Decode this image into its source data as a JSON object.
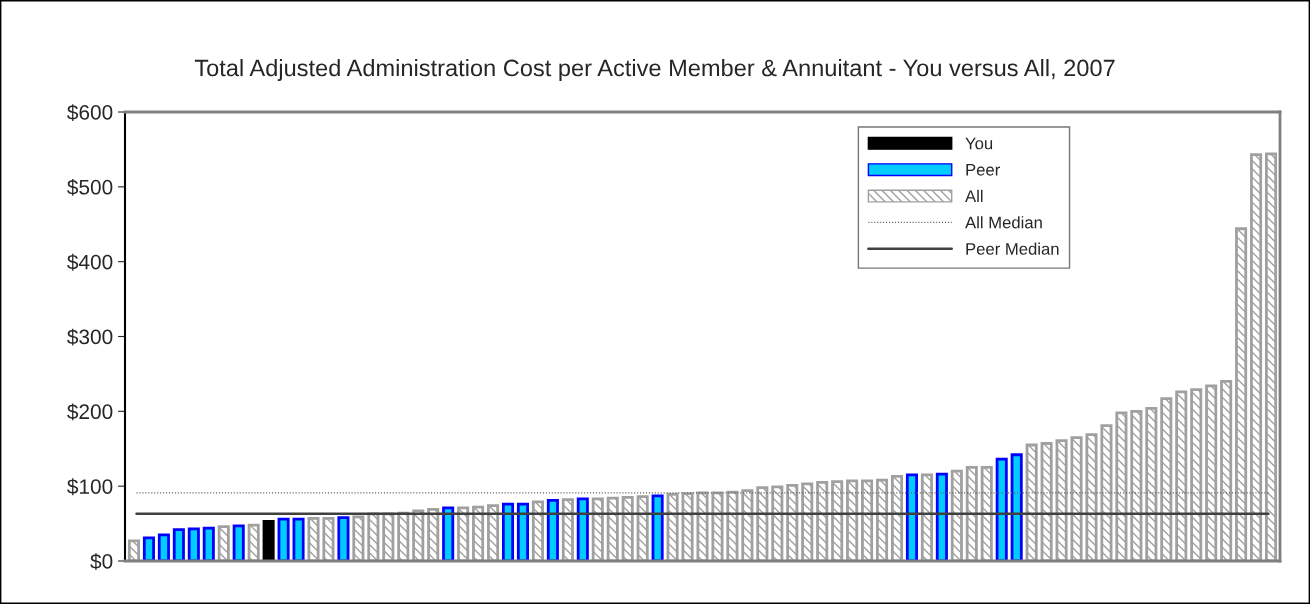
{
  "chart_data": {
    "type": "bar",
    "title": "Total Adjusted Administration Cost per Active Member & Annuitant - You versus All, 2007",
    "categories": [
      null,
      null,
      null,
      null,
      null,
      null,
      null,
      null,
      null,
      null,
      null,
      null,
      null,
      null,
      null,
      null,
      null,
      null,
      null,
      null,
      null,
      null,
      null,
      null,
      null,
      null,
      null,
      null,
      null,
      null,
      null,
      null,
      null,
      null,
      null,
      null,
      null,
      null,
      null,
      null,
      null,
      null,
      null,
      null,
      null,
      null,
      null,
      null,
      null,
      null,
      null,
      null,
      null,
      null,
      null,
      null,
      null,
      null,
      null,
      null,
      null,
      null,
      null,
      null,
      null,
      null,
      null,
      null,
      null,
      null,
      null,
      null,
      null,
      null,
      null,
      null,
      null
    ],
    "series": [
      {
        "name": "You",
        "color": "#000000",
        "values": [
          null,
          null,
          null,
          null,
          null,
          null,
          null,
          null,
          null,
          53,
          null,
          null,
          null,
          null,
          null,
          null,
          null,
          null,
          null,
          null,
          null,
          null,
          null,
          null,
          null,
          null,
          null,
          null,
          null,
          null,
          null,
          null,
          null,
          null,
          null,
          null,
          null,
          null,
          null,
          null,
          null,
          null,
          null,
          null,
          null,
          null,
          null,
          null,
          null,
          null,
          null,
          null,
          null,
          null,
          null,
          null,
          null,
          null,
          null,
          null,
          null,
          null,
          null,
          null,
          null,
          null,
          null,
          null,
          null,
          null,
          null,
          null,
          null,
          null,
          null,
          null,
          null
        ]
      },
      {
        "name": "Peer",
        "color": "#00ccff",
        "values": [
          null,
          31,
          35,
          42,
          43,
          44,
          null,
          47,
          null,
          null,
          56,
          56,
          null,
          null,
          58,
          null,
          null,
          null,
          null,
          null,
          null,
          71,
          null,
          null,
          null,
          76,
          76,
          null,
          81,
          null,
          83,
          null,
          null,
          null,
          null,
          87,
          null,
          null,
          null,
          null,
          null,
          null,
          null,
          null,
          null,
          null,
          null,
          null,
          null,
          null,
          null,
          null,
          115,
          null,
          116,
          null,
          null,
          null,
          136,
          142,
          null,
          null,
          null,
          null,
          null,
          null,
          null,
          null,
          null,
          null,
          null,
          null,
          null,
          null,
          null,
          null,
          null
        ]
      },
      {
        "name": "All",
        "color": "#a0a0a0",
        "values": [
          27,
          null,
          null,
          null,
          null,
          null,
          46,
          null,
          48,
          null,
          null,
          null,
          57,
          57,
          null,
          59,
          63,
          63,
          64,
          67,
          69,
          null,
          71,
          72,
          74,
          null,
          null,
          79,
          null,
          82,
          null,
          83,
          84,
          85,
          86,
          null,
          89,
          90,
          91,
          91,
          92,
          94,
          98,
          99,
          101,
          103,
          105,
          106,
          107,
          107,
          108,
          113,
          null,
          115,
          null,
          120,
          125,
          125,
          null,
          null,
          155,
          157,
          161,
          165,
          169,
          181,
          198,
          200,
          204,
          217,
          226,
          229,
          234,
          240,
          444,
          543,
          544
        ]
      }
    ],
    "ref_lines": [
      {
        "axis": "y",
        "value": 91,
        "label": "All Median",
        "color": "#606060",
        "line_style": "dotted"
      },
      {
        "axis": "y",
        "value": 63,
        "label": "Peer Median",
        "color": "#404040",
        "line_style": "solid"
      }
    ],
    "ylim": [
      0,
      600
    ],
    "yticks": [
      {
        "value": 0,
        "label": "$0"
      },
      {
        "value": 100,
        "label": "$100"
      },
      {
        "value": 200,
        "label": "$200"
      },
      {
        "value": 300,
        "label": "$300"
      },
      {
        "value": 400,
        "label": "$400"
      },
      {
        "value": 500,
        "label": "$500"
      },
      {
        "value": 600,
        "label": "$600"
      }
    ],
    "tick_labels": "y",
    "legend": "top right",
    "grid": false
  }
}
